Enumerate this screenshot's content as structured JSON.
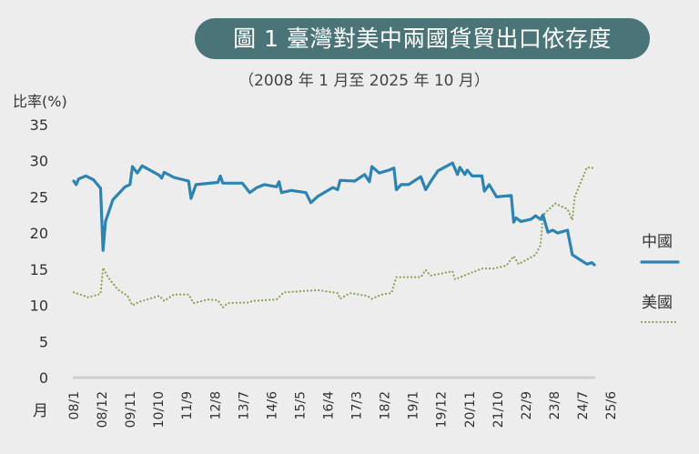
{
  "chart_data": {
    "type": "line",
    "title": "圖 1  臺灣對美中兩國貨貿出口依存度",
    "subtitle": "（2008 年 1 月至 2025 年 10 月）",
    "ylabel": "比率(%)",
    "xlabel": "月",
    "ylim": [
      0,
      35
    ],
    "yticks": [
      0,
      5,
      10,
      15,
      20,
      25,
      30,
      35
    ],
    "x_start": "2008/1",
    "x_end": "2025/10",
    "x_months_total": 213,
    "xticks": [
      "08/1",
      "08/12",
      "09/11",
      "10/10",
      "11/9",
      "12/8",
      "13/7",
      "14/6",
      "15/5",
      "16/4",
      "17/3",
      "18/2",
      "19/1",
      "19/12",
      "20/11",
      "21/10",
      "22/9",
      "23/8",
      "24/7",
      "25/6"
    ],
    "xtick_interval_months": 11,
    "grid": false,
    "legend_position": "right",
    "series": [
      {
        "name": "中國",
        "style": "solid",
        "color": "#2e84b0",
        "points": [
          [
            0,
            27.2
          ],
          [
            1,
            26.7
          ],
          [
            2,
            27.5
          ],
          [
            5,
            27.9
          ],
          [
            8,
            27.4
          ],
          [
            11,
            26.2
          ],
          [
            12,
            17.6
          ],
          [
            13,
            21.6
          ],
          [
            16,
            24.6
          ],
          [
            21,
            26.4
          ],
          [
            23,
            26.7
          ],
          [
            24,
            29.2
          ],
          [
            26,
            28.3
          ],
          [
            28,
            29.3
          ],
          [
            35,
            28.0
          ],
          [
            36,
            27.6
          ],
          [
            37,
            28.4
          ],
          [
            41,
            27.7
          ],
          [
            47,
            27.2
          ],
          [
            48,
            24.8
          ],
          [
            50,
            26.7
          ],
          [
            59,
            27.0
          ],
          [
            60,
            27.9
          ],
          [
            61,
            26.9
          ],
          [
            69,
            26.9
          ],
          [
            72,
            25.6
          ],
          [
            75,
            26.3
          ],
          [
            78,
            26.7
          ],
          [
            83,
            26.4
          ],
          [
            84,
            27.1
          ],
          [
            85,
            25.6
          ],
          [
            89,
            25.9
          ],
          [
            95,
            25.6
          ],
          [
            97,
            24.2
          ],
          [
            100,
            25.1
          ],
          [
            106,
            26.3
          ],
          [
            108,
            26.0
          ],
          [
            109,
            27.3
          ],
          [
            115,
            27.2
          ],
          [
            119,
            28.1
          ],
          [
            121,
            27.1
          ],
          [
            122,
            29.2
          ],
          [
            125,
            28.3
          ],
          [
            129,
            28.7
          ],
          [
            131,
            29.0
          ],
          [
            132,
            26.0
          ],
          [
            134,
            26.7
          ],
          [
            137,
            26.7
          ],
          [
            142,
            27.8
          ],
          [
            144,
            26.0
          ],
          [
            146,
            27.1
          ],
          [
            149,
            28.6
          ],
          [
            155,
            29.7
          ],
          [
            157,
            28.1
          ],
          [
            158,
            29.1
          ],
          [
            160,
            28.1
          ],
          [
            161,
            28.7
          ],
          [
            163,
            27.9
          ],
          [
            167,
            27.9
          ],
          [
            168,
            25.8
          ],
          [
            170,
            26.7
          ],
          [
            173,
            25.0
          ],
          [
            179,
            25.2
          ],
          [
            180,
            21.5
          ],
          [
            181,
            22.1
          ],
          [
            183,
            21.6
          ],
          [
            187,
            21.9
          ],
          [
            189,
            22.4
          ],
          [
            191,
            21.9
          ],
          [
            192,
            22.5
          ],
          [
            194,
            20.1
          ],
          [
            196,
            20.4
          ],
          [
            198,
            20.0
          ],
          [
            202,
            20.4
          ],
          [
            204,
            17.0
          ],
          [
            210,
            15.7
          ],
          [
            212,
            15.9
          ],
          [
            213,
            15.6
          ]
        ]
      },
      {
        "name": "美國",
        "style": "dotted",
        "color": "#8aa45a",
        "points": [
          [
            0,
            11.8
          ],
          [
            6,
            11.1
          ],
          [
            11,
            11.6
          ],
          [
            12,
            15.2
          ],
          [
            14,
            13.9
          ],
          [
            18,
            12.2
          ],
          [
            22,
            11.3
          ],
          [
            24,
            10.0
          ],
          [
            27,
            10.5
          ],
          [
            35,
            11.3
          ],
          [
            37,
            10.6
          ],
          [
            41,
            11.5
          ],
          [
            47,
            11.5
          ],
          [
            49,
            10.3
          ],
          [
            55,
            10.8
          ],
          [
            59,
            10.7
          ],
          [
            61,
            9.7
          ],
          [
            63,
            10.3
          ],
          [
            72,
            10.4
          ],
          [
            73,
            10.6
          ],
          [
            83,
            10.8
          ],
          [
            86,
            11.8
          ],
          [
            100,
            12.1
          ],
          [
            108,
            11.7
          ],
          [
            109,
            10.9
          ],
          [
            113,
            11.7
          ],
          [
            120,
            11.3
          ],
          [
            122,
            10.9
          ],
          [
            126,
            11.5
          ],
          [
            130,
            11.7
          ],
          [
            132,
            13.9
          ],
          [
            142,
            13.9
          ],
          [
            144,
            14.9
          ],
          [
            146,
            14.1
          ],
          [
            155,
            14.7
          ],
          [
            156,
            13.6
          ],
          [
            167,
            15.1
          ],
          [
            172,
            15.1
          ],
          [
            177,
            15.5
          ],
          [
            180,
            16.8
          ],
          [
            182,
            15.7
          ],
          [
            189,
            17.0
          ],
          [
            191,
            18.3
          ],
          [
            192,
            22.5
          ],
          [
            197,
            24.1
          ],
          [
            202,
            23.3
          ],
          [
            204,
            21.8
          ],
          [
            205,
            25.0
          ],
          [
            210,
            29.1
          ],
          [
            213,
            29.0
          ]
        ]
      }
    ]
  }
}
